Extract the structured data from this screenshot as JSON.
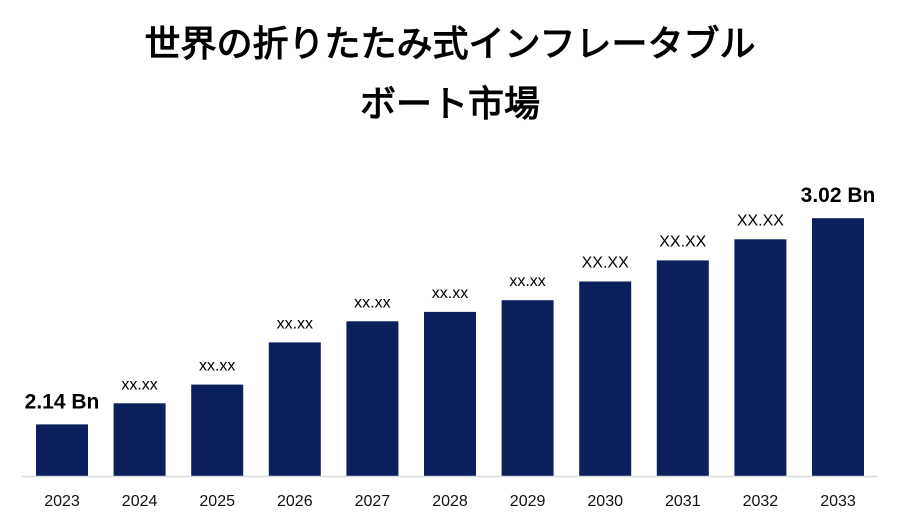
{
  "chart_data": {
    "type": "bar",
    "title": [
      "世界の折りたたみ式インフレータブル",
      "ボート市場"
    ],
    "categories": [
      "2023",
      "2024",
      "2025",
      "2026",
      "2027",
      "2028",
      "2029",
      "2030",
      "2031",
      "2032",
      "2033"
    ],
    "values": [
      2.14,
      2.23,
      2.31,
      2.49,
      2.58,
      2.62,
      2.67,
      2.75,
      2.84,
      2.93,
      3.02
    ],
    "data_labels": [
      "2.14 Bn",
      "xx.xx",
      "xx.xx",
      "xx.xx",
      "xx.xx",
      "xx.xx",
      "xx.xx",
      "XX.XX",
      "XX.XX",
      "XX.XX",
      "3.02 Bn"
    ],
    "ylim": [
      1.92,
      3.2
    ],
    "grid": false,
    "show_legend": false
  },
  "colors": {
    "bar": "#0a1f5c",
    "axis": "#d9d9d9",
    "text": "#000000"
  }
}
